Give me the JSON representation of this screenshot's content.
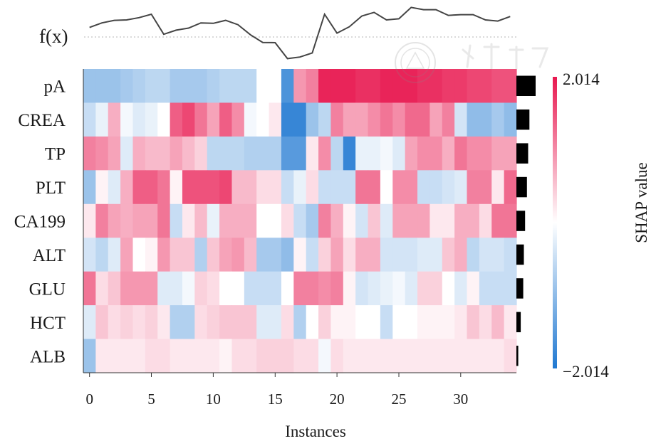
{
  "chart_data": {
    "type": "heatmap",
    "title": "",
    "xlabel": "Instances",
    "colorbar_label": "SHAP value",
    "colorbar_max_label": "2.014",
    "colorbar_min_label": "−2.014",
    "color_range": [
      -2.014,
      2.014
    ],
    "colors": {
      "negative": "#1f78d1",
      "neutral": "#ffffff",
      "positive": "#e8174f"
    },
    "fx_label": "f(x)",
    "x_ticks": [
      0,
      5,
      10,
      15,
      20,
      25,
      30
    ],
    "n_instances": 35,
    "features": [
      "pA",
      "CREA",
      "TP",
      "PLT",
      "CA199",
      "ALT",
      "GLU",
      "HCT",
      "ALB"
    ],
    "importance": [
      1.55,
      1.05,
      0.95,
      0.85,
      0.7,
      0.6,
      0.55,
      0.35,
      0.15
    ],
    "fx": [
      0.42,
      0.62,
      0.73,
      0.75,
      0.85,
      1.0,
      0.12,
      0.3,
      0.39,
      0.62,
      0.6,
      0.73,
      0.54,
      0.1,
      -0.24,
      -0.25,
      -0.95,
      -0.88,
      -0.7,
      1.0,
      0.17,
      0.45,
      0.92,
      1.08,
      0.75,
      0.8,
      1.3,
      1.2,
      1.2,
      0.95,
      0.98,
      0.98,
      0.75,
      0.7,
      0.9
    ],
    "shap": [
      [
        -0.9,
        -0.9,
        -0.9,
        -0.8,
        -0.7,
        -0.6,
        -0.6,
        -0.8,
        -0.8,
        -0.8,
        -0.7,
        -0.6,
        -0.6,
        -0.6,
        0.0,
        0.0,
        -1.6,
        0.9,
        1.1,
        1.9,
        1.9,
        1.9,
        1.8,
        1.8,
        1.9,
        1.9,
        1.9,
        1.8,
        1.8,
        1.7,
        1.7,
        1.6,
        1.6,
        1.5,
        1.5
      ],
      [
        -0.5,
        -0.2,
        0.7,
        -0.1,
        -0.3,
        -0.2,
        0.0,
        1.4,
        1.6,
        1.2,
        0.8,
        1.4,
        1.0,
        -0.1,
        0.0,
        0.2,
        -1.8,
        -1.8,
        -0.9,
        -0.6,
        1.1,
        0.8,
        0.8,
        1.0,
        1.2,
        1.0,
        1.3,
        1.3,
        0.8,
        1.1,
        -0.4,
        -1.0,
        -1.0,
        -0.8,
        -1.0
      ],
      [
        1.1,
        1.0,
        0.8,
        -0.3,
        0.7,
        0.6,
        0.6,
        0.8,
        0.6,
        0.4,
        -0.6,
        -0.6,
        -0.6,
        -0.7,
        -0.7,
        -0.7,
        -1.5,
        -1.5,
        0.2,
        1.0,
        -0.6,
        -1.8,
        -0.2,
        -0.2,
        -0.1,
        -0.3,
        0.8,
        1.0,
        1.0,
        0.7,
        1.2,
        1.0,
        1.0,
        0.8,
        0.8
      ],
      [
        -0.9,
        0.1,
        -0.3,
        0.7,
        1.4,
        1.4,
        1.2,
        0.1,
        1.5,
        1.5,
        1.5,
        1.6,
        0.6,
        0.6,
        0.3,
        0.3,
        -0.5,
        -0.2,
        0.3,
        -0.5,
        -0.5,
        -0.5,
        1.2,
        1.2,
        0.0,
        1.0,
        1.0,
        -0.5,
        -0.5,
        -0.4,
        -0.3,
        1.1,
        1.1,
        0.2,
        1.3
      ],
      [
        0.2,
        1.1,
        0.8,
        0.7,
        0.8,
        0.8,
        1.2,
        -0.5,
        0.2,
        0.6,
        -0.2,
        0.7,
        0.7,
        0.7,
        0.0,
        0.0,
        0.3,
        -0.5,
        -0.8,
        1.1,
        0.7,
        0.1,
        -0.4,
        0.5,
        -0.3,
        0.8,
        0.8,
        0.8,
        0.2,
        0.2,
        0.7,
        0.7,
        0.3,
        1.2,
        1.2
      ],
      [
        -0.4,
        -0.6,
        -0.3,
        0.8,
        0.0,
        0.1,
        0.9,
        0.5,
        0.5,
        -0.7,
        0.5,
        0.8,
        0.9,
        0.6,
        -0.8,
        -0.8,
        -1.0,
        0.1,
        -0.5,
        0.4,
        0.8,
        0.3,
        0.7,
        0.7,
        -0.4,
        -0.4,
        -0.4,
        -0.3,
        -0.3,
        0.5,
        0.7,
        -0.6,
        -0.4,
        -0.4,
        -0.5
      ],
      [
        1.2,
        0.3,
        0.5,
        0.9,
        0.9,
        0.9,
        -0.3,
        -0.3,
        -0.1,
        0.4,
        0.3,
        0.0,
        0.0,
        -0.5,
        -0.5,
        -0.5,
        0.0,
        1.1,
        1.1,
        1.0,
        1.1,
        0.1,
        -0.4,
        -0.3,
        -0.2,
        -0.1,
        -0.3,
        0.4,
        0.4,
        0.0,
        -0.3,
        0.1,
        -0.5,
        -0.5,
        -0.5
      ],
      [
        -0.3,
        0.5,
        0.3,
        0.4,
        0.3,
        0.4,
        0.2,
        -0.7,
        -0.7,
        0.3,
        0.4,
        0.5,
        0.5,
        0.5,
        -0.3,
        -0.3,
        0.3,
        -0.7,
        0.0,
        0.4,
        0.1,
        0.1,
        0.0,
        0.0,
        -0.5,
        0.0,
        0.0,
        0.1,
        0.1,
        0.1,
        0.2,
        0.5,
        0.3,
        0.6,
        0.2
      ],
      [
        -0.9,
        0.2,
        0.2,
        0.2,
        0.2,
        0.3,
        0.3,
        0.2,
        0.2,
        0.2,
        0.2,
        0.1,
        0.3,
        0.3,
        0.4,
        0.4,
        0.4,
        0.3,
        0.3,
        -0.1,
        0.3,
        0.2,
        0.2,
        0.2,
        0.2,
        0.2,
        0.2,
        0.2,
        0.2,
        0.2,
        0.2,
        0.2,
        0.2,
        0.2,
        0.3
      ]
    ]
  }
}
